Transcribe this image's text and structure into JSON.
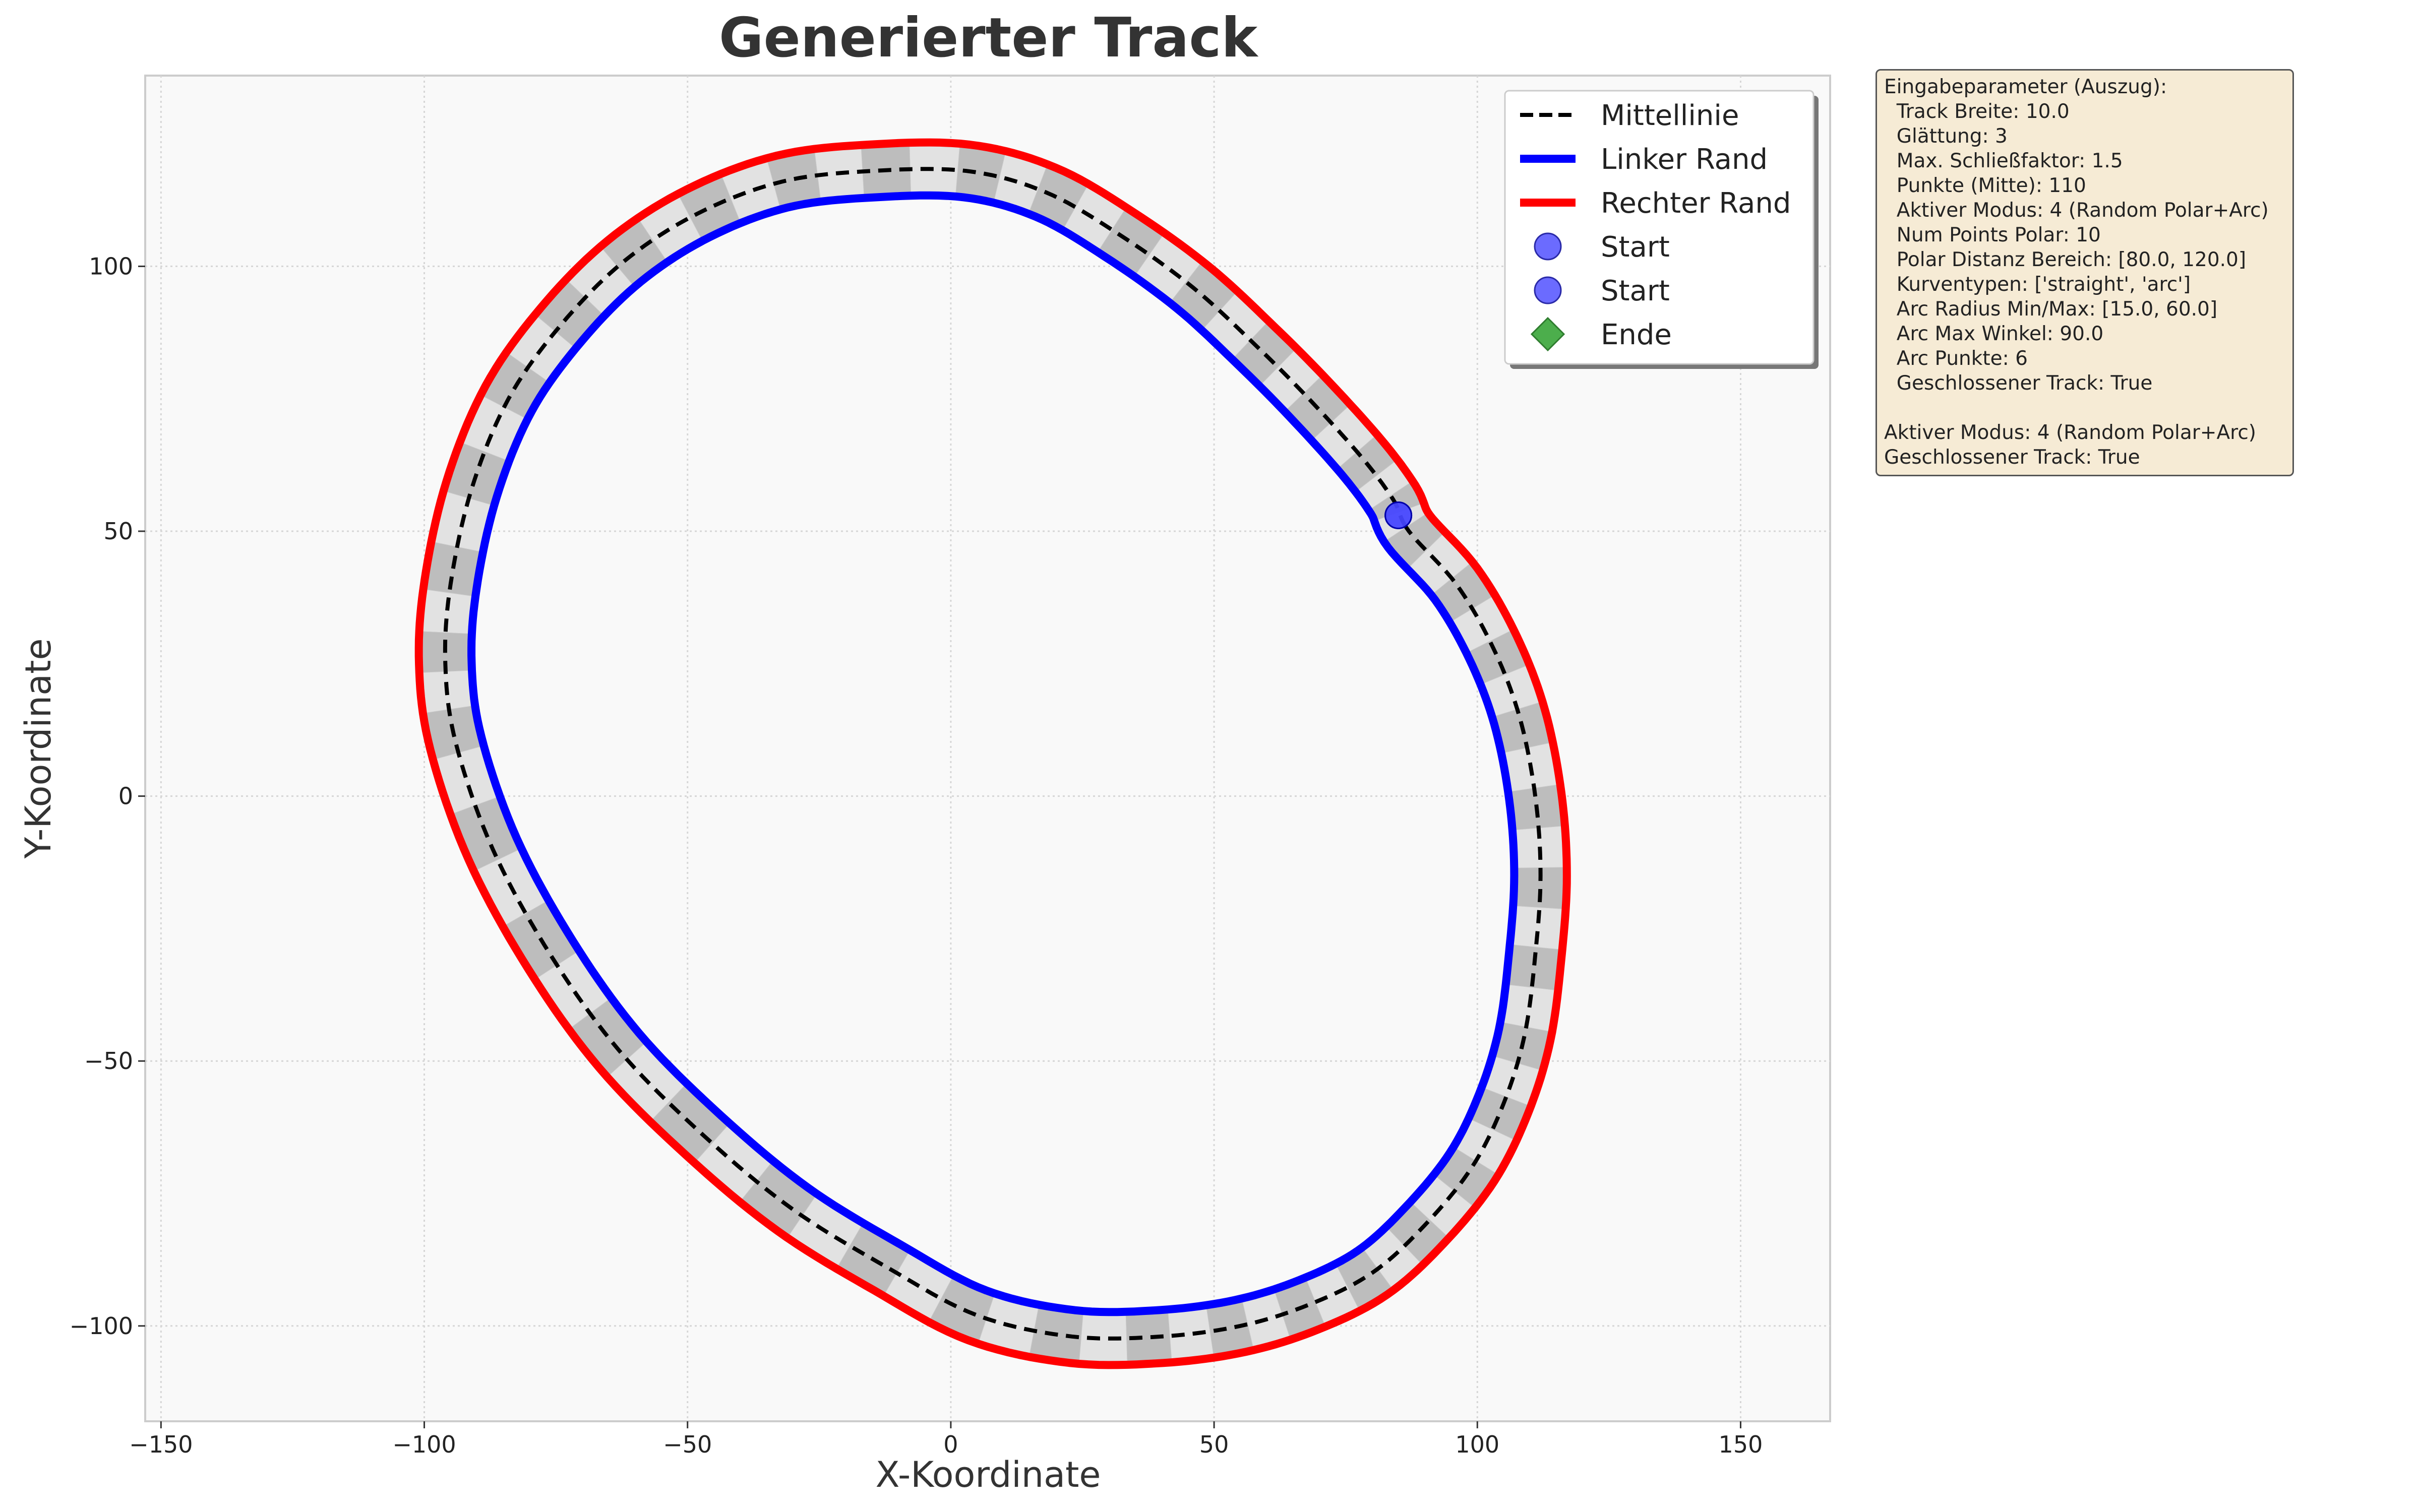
{
  "colors": {
    "background": "#ffffff",
    "axes_face": "#f9f9f9",
    "centerline": "#000000",
    "left_edge": "#0000ff",
    "right_edge": "#ff0000",
    "segment_dark": "#bdbdbd",
    "segment_light": "#e2e2e2",
    "start_marker": "#4646ff",
    "end_marker": "#4cae4c",
    "info_box_bg": "#f6ebd5"
  },
  "chart_data": {
    "type": "line",
    "title": "Generierter Track",
    "xlabel": "X-Koordinate",
    "ylabel": "Y-Koordinate",
    "xlim": [
      -153,
      167
    ],
    "ylim": [
      -118,
      136
    ],
    "xticks": [
      -150,
      -100,
      -50,
      0,
      50,
      100,
      150
    ],
    "yticks": [
      -100,
      -50,
      0,
      50,
      100
    ],
    "xtick_labels": [
      "−150",
      "−100",
      "−50",
      "0",
      "50",
      "100",
      "150"
    ],
    "ytick_labels": [
      "−100",
      "−50",
      "0",
      "50",
      "100"
    ],
    "grid": true,
    "legend_position": "top-right",
    "track_width": 10,
    "centerline": {
      "closed": true,
      "x": [
        87,
        96,
        103,
        108,
        111,
        112,
        111,
        109,
        105,
        99,
        90,
        80,
        68,
        55,
        40,
        23,
        5,
        -12,
        -30,
        -47,
        -63,
        -76,
        -87,
        -94,
        -96,
        -95,
        -91,
        -84,
        -74,
        -62,
        -48,
        -32,
        -15,
        3,
        18,
        32,
        46,
        58,
        68,
        78,
        84
      ],
      "y": [
        50,
        40,
        28,
        15,
        0,
        -15,
        -30,
        -45,
        -58,
        -70,
        -81,
        -90,
        -96,
        -100,
        -102,
        -102,
        -98,
        -89,
        -78,
        -64,
        -48,
        -30,
        -10,
        10,
        25,
        40,
        58,
        75,
        89,
        101,
        110,
        116,
        118,
        118,
        114,
        106,
        96,
        85,
        75,
        64,
        56
      ]
    },
    "series": [
      {
        "name": "Mittellinie",
        "kind": "dashed-line"
      },
      {
        "name": "Linker Rand",
        "kind": "line"
      },
      {
        "name": "Rechter Rand",
        "kind": "line"
      },
      {
        "name": "Start",
        "kind": "marker-circle",
        "x": 85,
        "y": 53
      },
      {
        "name": "Start",
        "kind": "marker-circle",
        "x": 85,
        "y": 53
      },
      {
        "name": "Ende",
        "kind": "marker-diamond",
        "x": 85,
        "y": 53
      }
    ]
  },
  "info_box": {
    "lines": [
      "Eingabeparameter (Auszug):",
      "  Track Breite: 10.0",
      "  Glättung: 3",
      "  Max. Schließfaktor: 1.5",
      "  Punkte (Mitte): 110",
      "  Aktiver Modus: 4 (Random Polar+Arc)",
      "  Num Points Polar: 10",
      "  Polar Distanz Bereich: [80.0, 120.0]",
      "  Kurventypen: ['straight', 'arc']",
      "  Arc Radius Min/Max: [15.0, 60.0]",
      "  Arc Max Winkel: 90.0",
      "  Arc Punkte: 6",
      "  Geschlossener Track: True",
      "",
      "Aktiver Modus: 4 (Random Polar+Arc)",
      "Geschlossener Track: True"
    ]
  }
}
